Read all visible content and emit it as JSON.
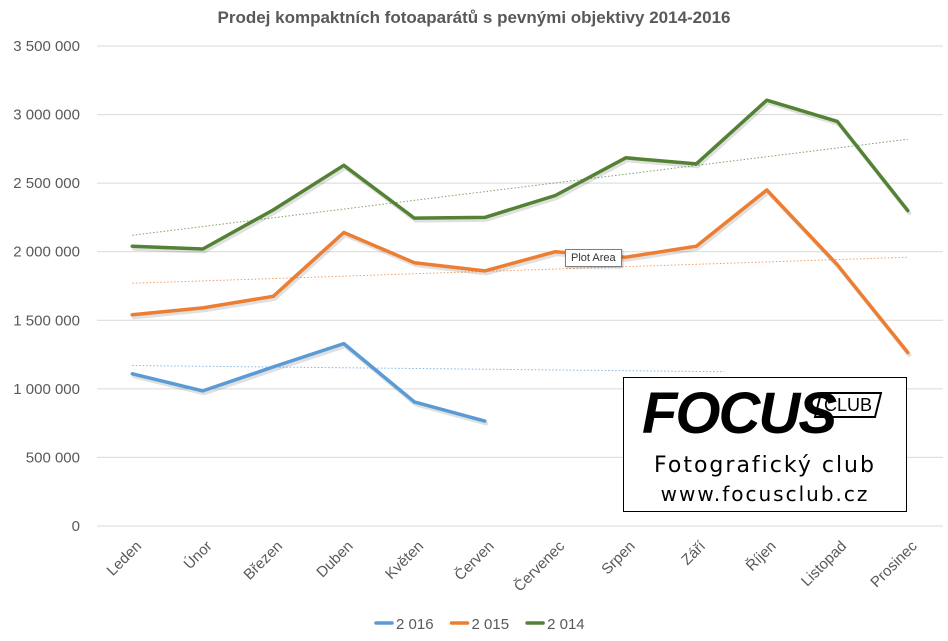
{
  "chart_data": {
    "type": "line",
    "title": "Prodej kompaktních fotoaparátů s pevnými objektivy 2014-2016",
    "categories": [
      "Leden",
      "Únor",
      "Březen",
      "Duben",
      "Květen",
      "Červen",
      "Červenec",
      "Srpen",
      "Září",
      "Říjen",
      "Listopad",
      "Prosinec"
    ],
    "y_ticks": [
      "0",
      "500 000",
      "1 000 000",
      "1 500 000",
      "2 000 000",
      "2 500 000",
      "3 000 000",
      "3 500 000"
    ],
    "ylim": [
      0,
      3500000
    ],
    "grid": true,
    "legend_position": "bottom",
    "series": [
      {
        "name": "2 016",
        "color": "#5B9BD5",
        "values": [
          1110000,
          985000,
          1160000,
          1330000,
          905000,
          765000,
          null,
          null,
          null,
          null,
          null,
          null
        ],
        "trendline": [
          1170000,
          1125000
        ]
      },
      {
        "name": "2 015",
        "color": "#ED7D31",
        "values": [
          1540000,
          1590000,
          1675000,
          2140000,
          1920000,
          1860000,
          2000000,
          1960000,
          2040000,
          2450000,
          1905000,
          1265000
        ],
        "trendline": [
          1770000,
          1960000
        ]
      },
      {
        "name": "2 014",
        "color": "#548235",
        "values": [
          2040000,
          2020000,
          2305000,
          2630000,
          2245000,
          2250000,
          2410000,
          2685000,
          2640000,
          3105000,
          2950000,
          2300000
        ],
        "trendline": [
          2120000,
          2820000
        ]
      }
    ]
  },
  "tooltip": "Plot Area",
  "logo": {
    "brand": "FOCUS",
    "badge": "CLUB",
    "line1": "Fotografický club",
    "line2": "www.focusclub.cz"
  }
}
